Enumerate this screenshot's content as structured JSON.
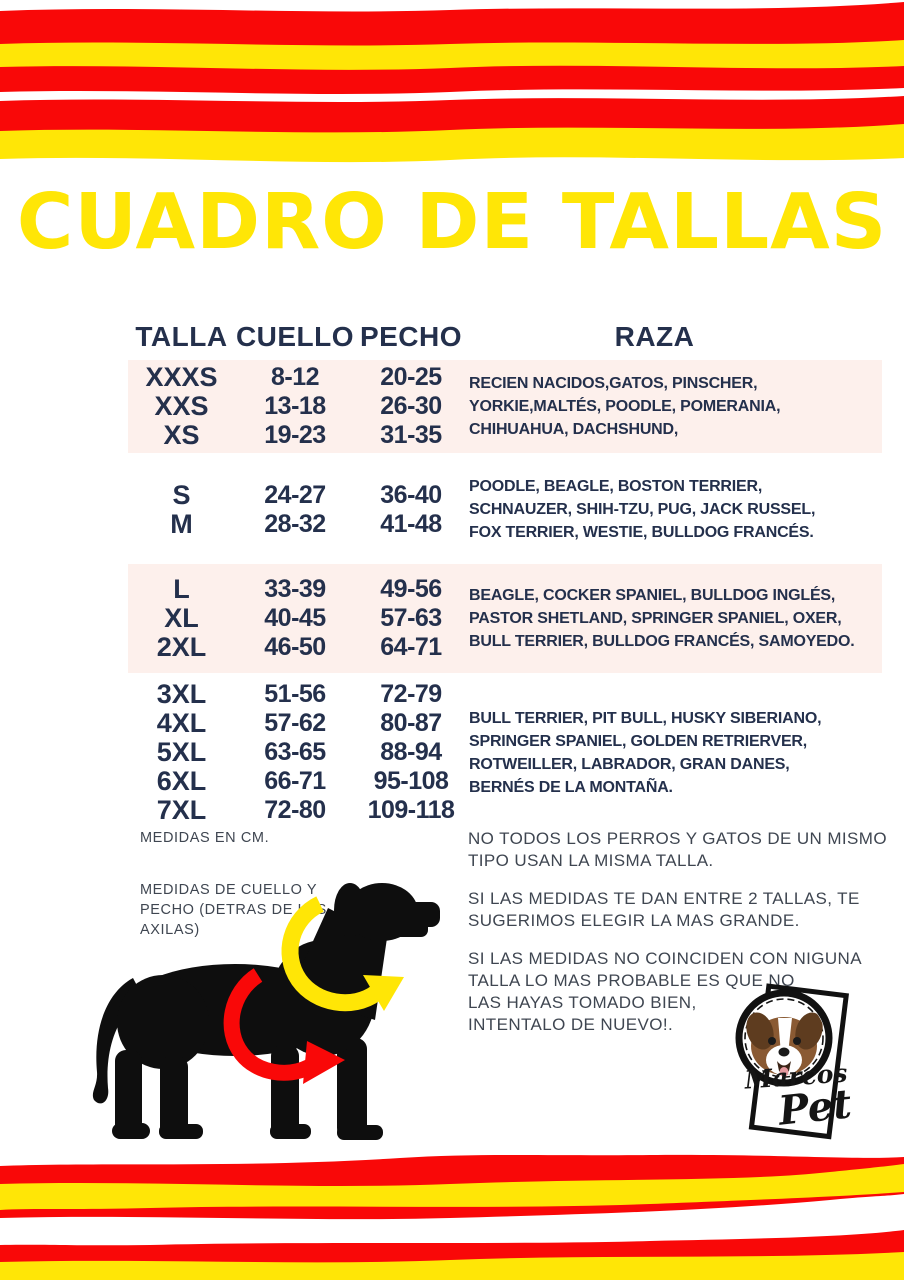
{
  "page": {
    "title": "CUADRO DE TALLAS"
  },
  "colors": {
    "red": "#f90808",
    "yellow": "#ffe606",
    "navy": "#24304c",
    "pink_band": "#fdf0ec",
    "note_gray": "#3f4651"
  },
  "table": {
    "headers": {
      "talla": "TALLA",
      "cuello": "CUELLO",
      "pecho": "PECHO",
      "raza": "RAZA"
    },
    "groups": [
      {
        "shaded": true,
        "rows": [
          {
            "talla": "XXXS",
            "cuello": "8-12",
            "pecho": "20-25"
          },
          {
            "talla": "XXS",
            "cuello": "13-18",
            "pecho": "26-30"
          },
          {
            "talla": "XS",
            "cuello": "19-23",
            "pecho": "31-35"
          }
        ],
        "raza": "RECIEN NACIDOS,GATOS, PINSCHER,\nYORKIE,MALTÉS, POODLE, POMERANIA,\nCHIHUAHUA, DACHSHUND,"
      },
      {
        "shaded": false,
        "rows": [
          {
            "talla": "S",
            "cuello": "24-27",
            "pecho": "36-40"
          },
          {
            "talla": "M",
            "cuello": "28-32",
            "pecho": "41-48"
          }
        ],
        "raza": "POODLE, BEAGLE, BOSTON TERRIER,\nSCHNAUZER, SHIH-TZU, PUG, JACK RUSSEL,\nFOX TERRIER, WESTIE, BULLDOG FRANCÉS."
      },
      {
        "shaded": true,
        "rows": [
          {
            "talla": "L",
            "cuello": "33-39",
            "pecho": "49-56"
          },
          {
            "talla": "XL",
            "cuello": "40-45",
            "pecho": "57-63"
          },
          {
            "talla": "2XL",
            "cuello": "46-50",
            "pecho": "64-71"
          }
        ],
        "raza": "BEAGLE, COCKER SPANIEL, BULLDOG INGLÉS,\nPASTOR SHETLAND, SPRINGER SPANIEL, OXER,\nBULL TERRIER, BULLDOG FRANCÉS, SAMOYEDO."
      },
      {
        "shaded": false,
        "rows": [
          {
            "talla": "3XL",
            "cuello": "51-56",
            "pecho": "72-79"
          },
          {
            "talla": "4XL",
            "cuello": "57-62",
            "pecho": "80-87"
          },
          {
            "talla": "5XL",
            "cuello": "63-65",
            "pecho": "88-94"
          },
          {
            "talla": "6XL",
            "cuello": "66-71",
            "pecho": "95-108"
          },
          {
            "talla": "7XL",
            "cuello": "72-80",
            "pecho": "109-118"
          }
        ],
        "raza": "BULL TERRIER, PIT BULL, HUSKY SIBERIANO,\nSPRINGER SPANIEL, GOLDEN RETRIERVER,\nROTWEILLER, LABRADOR, GRAN DANES,\nBERNÉS DE LA MONTAÑA."
      }
    ]
  },
  "notes": {
    "units": "MEDIDAS EN CM.",
    "measure": "MEDIDAS DE CUELLO Y\nPECHO (DETRAS DE LAS\nAXILAS)"
  },
  "advice": [
    "NO TODOS LOS PERROS Y GATOS DE UN MISMO\nTIPO USAN LA MISMA TALLA.",
    "SI LAS MEDIDAS TE DAN ENTRE 2 TALLAS, TE\nSUGERIMOS ELEGIR LA MAS GRANDE.",
    "SI LAS MEDIDAS NO COINCIDEN CON NIGUNA\nTALLA LO MAS PROBABLE ES QUE NO\nLAS HAYAS TOMADO BIEN,\nINTENTALO DE NUEVO!."
  ],
  "logo": {
    "brand_top": "Marcos",
    "brand_bottom": "Pet"
  }
}
